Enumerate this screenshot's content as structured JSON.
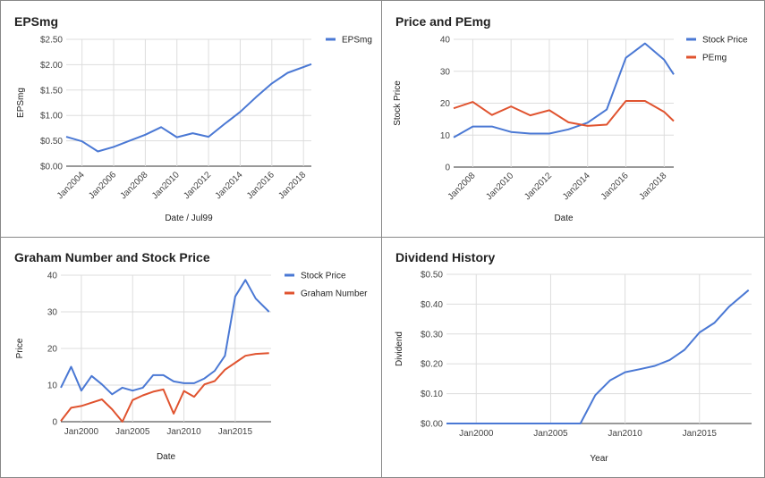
{
  "colors": {
    "blue": "#4a78d4",
    "red": "#e0532f"
  },
  "chart_data": [
    {
      "type": "line",
      "title": "EPSmg",
      "xlabel": "Date / Jul99",
      "ylabel": "EPSmg",
      "x_ticks": [
        "Jan2004",
        "Jan2006",
        "Jan2008",
        "Jan2010",
        "Jan2012",
        "Jan2014",
        "Jan2016",
        "Jan2018"
      ],
      "y_ticks": [
        "$2.50",
        "$2.00",
        "$1.50",
        "$1.00",
        "$0.50",
        "$0.00"
      ],
      "ylim": [
        0,
        2.5
      ],
      "xlim": [
        2003,
        2018.5
      ],
      "legend": "top-right",
      "series": [
        {
          "name": "EPSmg",
          "color": "#4a78d4",
          "x": [
            2003,
            2004,
            2005,
            2006,
            2007,
            2008,
            2009,
            2010,
            2011,
            2012,
            2013,
            2014,
            2015,
            2016,
            2017,
            2018.5
          ],
          "y": [
            0.58,
            0.49,
            0.29,
            0.38,
            0.5,
            0.62,
            0.77,
            0.57,
            0.65,
            0.58,
            0.83,
            1.07,
            1.36,
            1.63,
            1.84,
            2.01
          ]
        }
      ]
    },
    {
      "type": "line",
      "title": "Price and PEmg",
      "xlabel": "Date",
      "ylabel": "Stock Price",
      "x_ticks": [
        "Jan2008",
        "Jan2010",
        "Jan2012",
        "Jan2014",
        "Jan2016",
        "Jan2018"
      ],
      "y_ticks": [
        "40",
        "30",
        "20",
        "10",
        "0"
      ],
      "ylim": [
        0,
        40
      ],
      "xlim": [
        2007,
        2018.5
      ],
      "legend": "top-right",
      "series": [
        {
          "name": "Stock Price",
          "color": "#4a78d4",
          "x": [
            2007,
            2008,
            2009,
            2010,
            2011,
            2012,
            2013,
            2014,
            2015,
            2016,
            2017,
            2018,
            2018.5
          ],
          "y": [
            9.3,
            12.7,
            12.7,
            11.0,
            10.5,
            10.5,
            11.8,
            13.9,
            18.0,
            34.2,
            38.7,
            33.6,
            29.0
          ]
        },
        {
          "name": "PEmg",
          "color": "#e0532f",
          "x": [
            2007,
            2008,
            2009,
            2010,
            2011,
            2012,
            2013,
            2014,
            2015,
            2016,
            2017,
            2018,
            2018.5
          ],
          "y": [
            18.4,
            20.4,
            16.3,
            19.0,
            16.2,
            17.8,
            14.0,
            12.9,
            13.3,
            20.7,
            20.7,
            17.3,
            14.4
          ]
        }
      ]
    },
    {
      "type": "line",
      "title": "Graham Number and Stock Price",
      "xlabel": "Date",
      "ylabel": "Price",
      "x_ticks": [
        "Jan2000",
        "Jan2005",
        "Jan2010",
        "Jan2015"
      ],
      "y_ticks": [
        "40",
        "30",
        "20",
        "10",
        "0"
      ],
      "ylim": [
        0,
        40
      ],
      "xlim": [
        1998,
        2018.5
      ],
      "legend": "top-right",
      "series": [
        {
          "name": "Stock Price",
          "color": "#4a78d4",
          "x": [
            1998,
            1999,
            2000,
            2001,
            2002,
            2003,
            2004,
            2005,
            2006,
            2007,
            2008,
            2009,
            2010,
            2011,
            2012,
            2013,
            2014,
            2015,
            2016,
            2017,
            2018.3
          ],
          "y": [
            9.3,
            15.0,
            8.5,
            12.5,
            10.2,
            7.5,
            9.3,
            8.5,
            9.3,
            12.7,
            12.7,
            11.0,
            10.5,
            10.5,
            11.8,
            13.9,
            18.0,
            34.2,
            38.7,
            33.6,
            30.0
          ]
        },
        {
          "name": "Graham Number",
          "color": "#e0532f",
          "x": [
            1998,
            1999,
            2000,
            2001,
            2002,
            2003,
            2004,
            2005,
            2006,
            2007,
            2008,
            2009,
            2010,
            2011,
            2012,
            2013,
            2014,
            2015,
            2016,
            2017,
            2018.3
          ],
          "y": [
            0.2,
            3.8,
            4.3,
            5.2,
            6.1,
            3.4,
            0.0,
            5.9,
            7.2,
            8.2,
            8.8,
            2.2,
            8.4,
            6.8,
            10.2,
            11.1,
            14.2,
            16.1,
            18.0,
            18.5,
            18.7
          ]
        }
      ]
    },
    {
      "type": "line",
      "title": "Dividend History",
      "xlabel": "Year",
      "ylabel": "Dividend",
      "x_ticks": [
        "Jan2000",
        "Jan2005",
        "Jan2010",
        "Jan2015"
      ],
      "y_ticks": [
        "$0.50",
        "$0.40",
        "$0.30",
        "$0.20",
        "$0.10",
        "$0.00"
      ],
      "ylim": [
        0,
        0.5
      ],
      "xlim": [
        1998,
        2018.5
      ],
      "legend": "none",
      "series": [
        {
          "name": "",
          "color": "#4a78d4",
          "x": [
            1998,
            2000,
            2002,
            2004,
            2006,
            2007,
            2008,
            2009,
            2010,
            2011,
            2012,
            2013,
            2014,
            2015,
            2016,
            2017,
            2018.3
          ],
          "y": [
            0,
            0,
            0,
            0,
            0,
            0,
            0.095,
            0.145,
            0.172,
            0.182,
            0.193,
            0.213,
            0.247,
            0.305,
            0.337,
            0.392,
            0.447
          ]
        }
      ]
    }
  ]
}
